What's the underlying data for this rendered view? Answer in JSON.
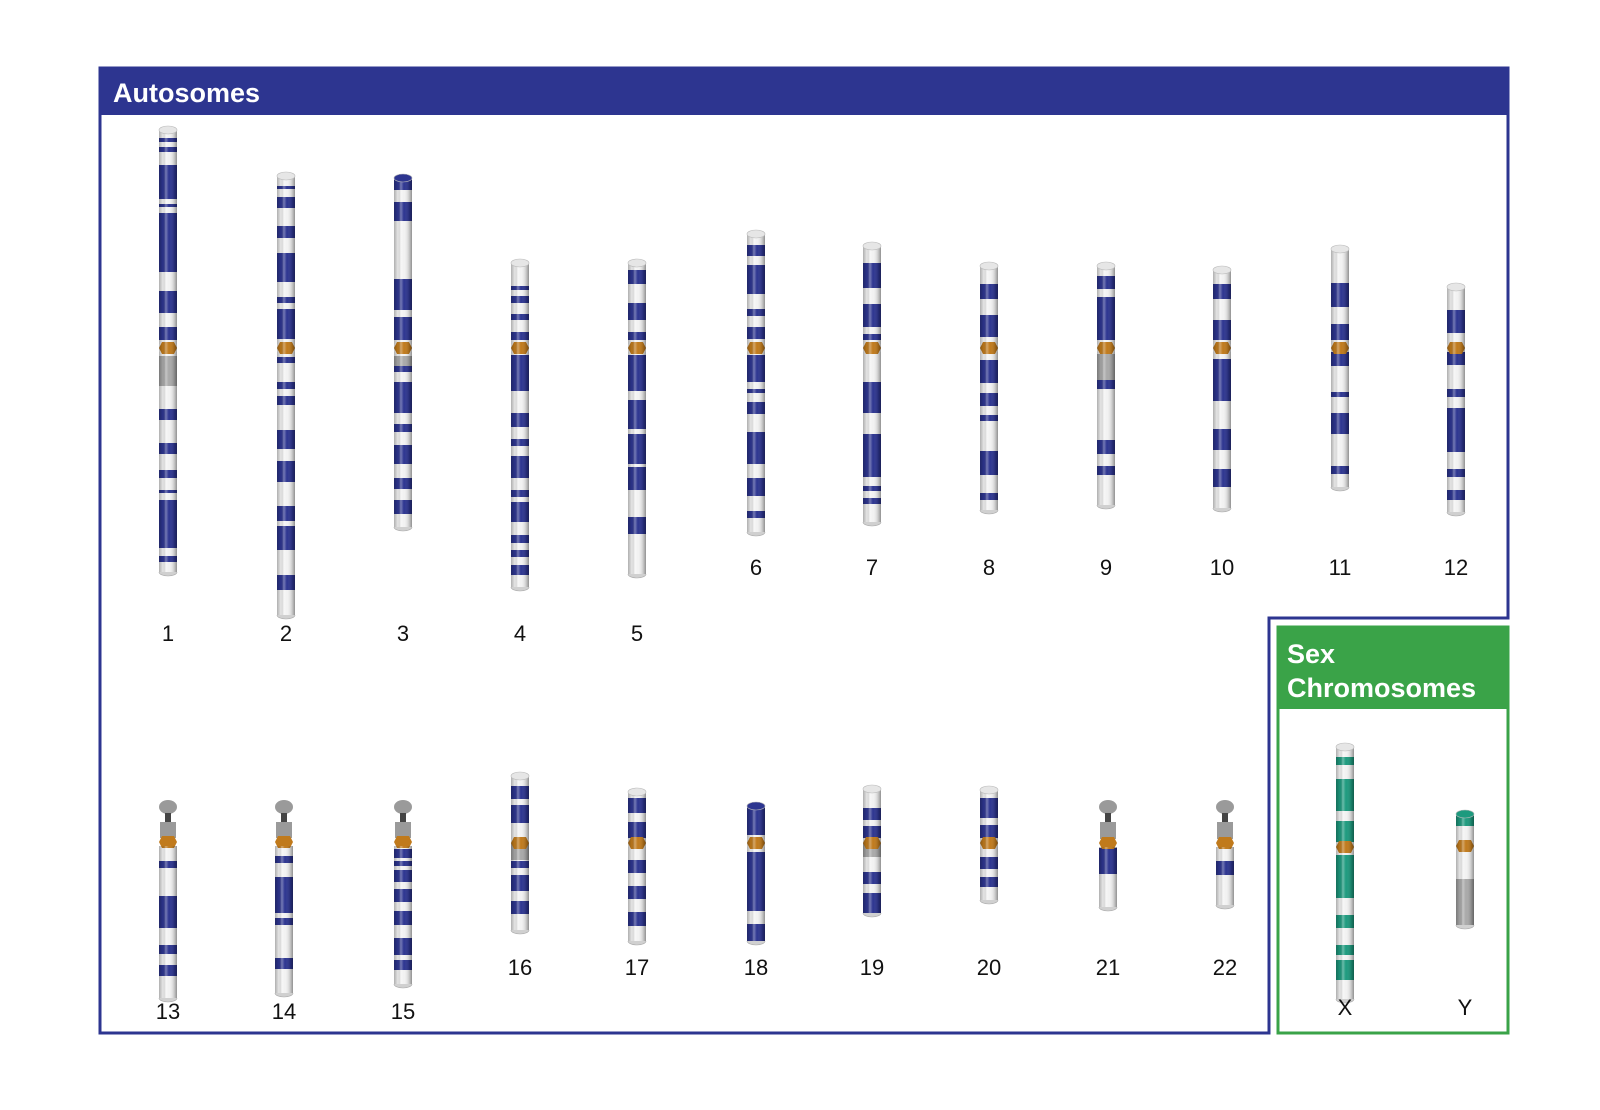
{
  "autosomes_title": "Autosomes",
  "sex_title_line1": "Sex",
  "sex_title_line2": "Chromosomes",
  "colors": {
    "autosome_frame": "#2d3590",
    "autosome_band": "#2d3590",
    "sex_frame": "#3aa348",
    "sex_band": "#1d9a7e",
    "centromere": "#c07a1c",
    "heterochromatin": "#a9a9a9",
    "light_band": "#f2f2f2"
  },
  "chromosomes": [
    {
      "label": "1",
      "set": "autosome"
    },
    {
      "label": "2",
      "set": "autosome"
    },
    {
      "label": "3",
      "set": "autosome"
    },
    {
      "label": "4",
      "set": "autosome"
    },
    {
      "label": "5",
      "set": "autosome"
    },
    {
      "label": "6",
      "set": "autosome"
    },
    {
      "label": "7",
      "set": "autosome"
    },
    {
      "label": "8",
      "set": "autosome"
    },
    {
      "label": "9",
      "set": "autosome"
    },
    {
      "label": "10",
      "set": "autosome"
    },
    {
      "label": "11",
      "set": "autosome"
    },
    {
      "label": "12",
      "set": "autosome"
    },
    {
      "label": "13",
      "set": "autosome"
    },
    {
      "label": "14",
      "set": "autosome"
    },
    {
      "label": "15",
      "set": "autosome"
    },
    {
      "label": "16",
      "set": "autosome"
    },
    {
      "label": "17",
      "set": "autosome"
    },
    {
      "label": "18",
      "set": "autosome"
    },
    {
      "label": "19",
      "set": "autosome"
    },
    {
      "label": "20",
      "set": "autosome"
    },
    {
      "label": "21",
      "set": "autosome"
    },
    {
      "label": "22",
      "set": "autosome"
    },
    {
      "label": "X",
      "set": "sex"
    },
    {
      "label": "Y",
      "set": "sex"
    }
  ]
}
